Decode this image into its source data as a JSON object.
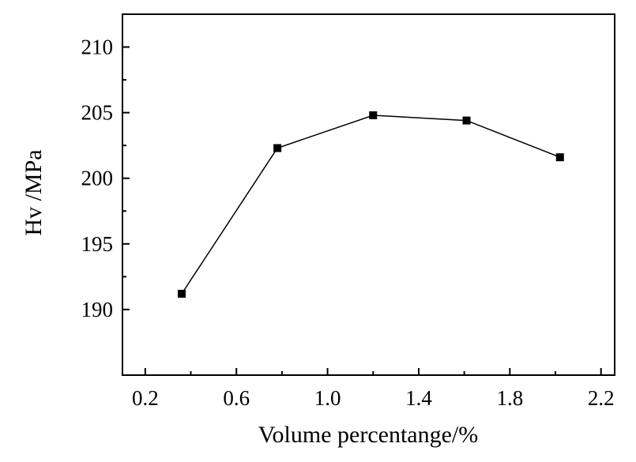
{
  "chart_data": {
    "type": "line",
    "title": "",
    "xlabel": "Volume percentange/%",
    "ylabel": "Hv /MPa",
    "xlim": [
      0.1,
      2.26
    ],
    "ylim": [
      185,
      212.5
    ],
    "x_ticks": [
      0.2,
      0.6,
      1.0,
      1.4,
      1.8,
      2.2
    ],
    "x_tick_labels": [
      "0.2",
      "0.6",
      "1.0",
      "1.4",
      "1.8",
      "2.2"
    ],
    "y_ticks": [
      190,
      195,
      200,
      205,
      210
    ],
    "y_tick_labels": [
      "190",
      "195",
      "200",
      "205",
      "210"
    ],
    "grid": false,
    "legend": "none",
    "marker": "square",
    "series": [
      {
        "x": [
          0.36,
          0.78,
          1.2,
          1.61,
          2.02
        ],
        "y": [
          191.2,
          202.3,
          204.8,
          204.4,
          201.6
        ]
      }
    ]
  }
}
